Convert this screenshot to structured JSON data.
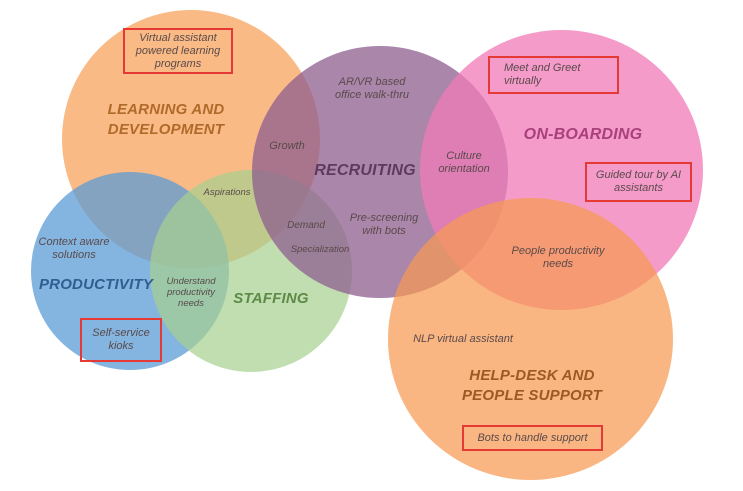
{
  "circles": {
    "learning": {
      "title_line1": "LEARNING AND",
      "title_line2": "DEVELOPMENT",
      "color": "#f7a35c"
    },
    "recruiting": {
      "title": "RECRUITING",
      "color": "#8e5e8f"
    },
    "onboarding": {
      "title": "ON-BOARDING",
      "color": "#f07ab8"
    },
    "productivity": {
      "title": "PRODUCTIVITY",
      "color": "#5b9bd5"
    },
    "staffing": {
      "title": "STAFFING",
      "color": "#a6d08f"
    },
    "helpdesk": {
      "title_line1": "HELP-DESK AND",
      "title_line2": "PEOPLE SUPPORT",
      "color": "#f79a52"
    }
  },
  "highlighted": {
    "learning_programs": [
      "Virtual assistant",
      "powered learning",
      "programs"
    ],
    "meet_greet": [
      "Meet and Greet",
      "virtually"
    ],
    "guided_tour": [
      "Guided tour by AI",
      "assistants"
    ],
    "self_service": [
      "Self-service",
      "kioks"
    ],
    "bots_support": "Bots to handle support"
  },
  "labels": {
    "arvr": [
      "AR/VR based",
      "office walk-thru"
    ],
    "growth": "Growth",
    "culture": [
      "Culture",
      "orientation"
    ],
    "aspirations": "Aspirations",
    "demand": "Demand",
    "specialization": "Specialization",
    "prescreening": [
      "Pre-screening",
      "with bots"
    ],
    "people_productivity": [
      "People productivity",
      "needs"
    ],
    "context_aware": [
      "Context aware",
      "solutions"
    ],
    "understand": [
      "Understand",
      "productivity",
      "needs"
    ],
    "nlp": "NLP virtual assistant"
  }
}
